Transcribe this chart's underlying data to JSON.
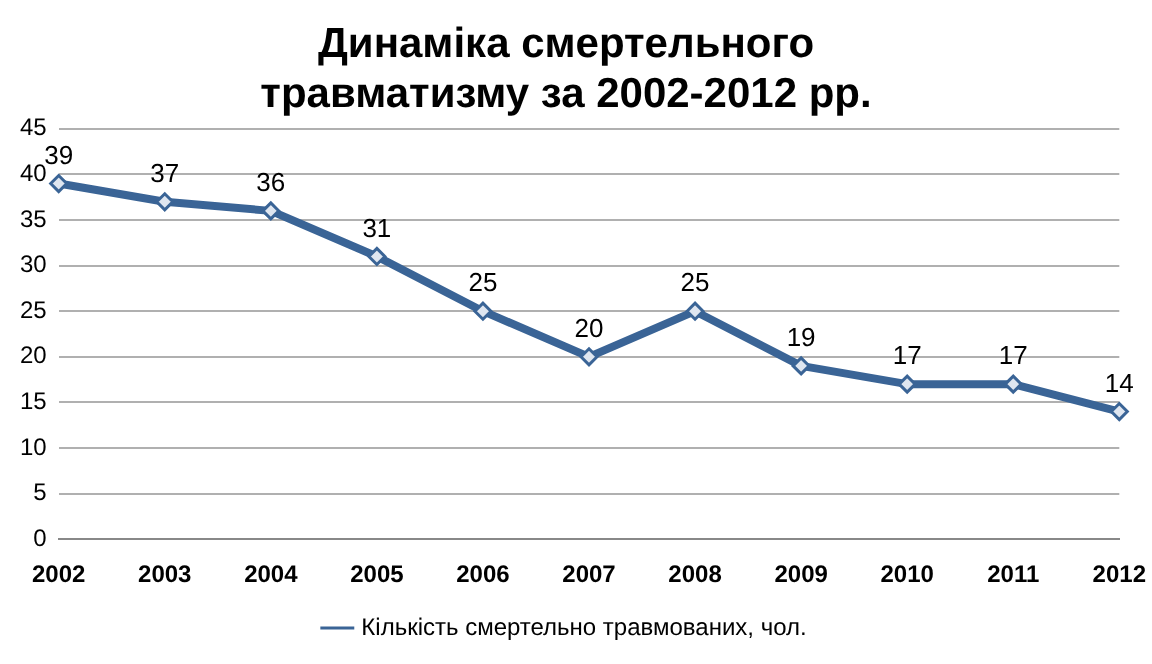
{
  "chart_data": {
    "type": "line",
    "title": [
      "Динаміка смертельного",
      "травматизму за 2002-2012 рр."
    ],
    "categories": [
      "2002",
      "2003",
      "2004",
      "2005",
      "2006",
      "2007",
      "2008",
      "2009",
      "2010",
      "2011",
      "2012"
    ],
    "series": [
      {
        "name": "Кількість смертельно травмованих, чол.",
        "color": "#3a6496",
        "values": [
          39,
          37,
          36,
          31,
          25,
          20,
          25,
          19,
          17,
          17,
          14
        ]
      }
    ],
    "ylim": [
      0,
      45
    ],
    "yticks": [
      0,
      5,
      10,
      15,
      20,
      25,
      30,
      35,
      40,
      45
    ],
    "grid": "y",
    "legend": "bottom",
    "marker": "diamond",
    "line_style": "solid",
    "data_labels": true
  }
}
